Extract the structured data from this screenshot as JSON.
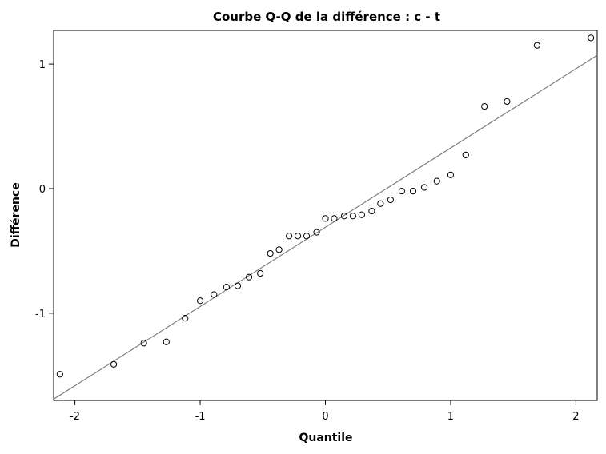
{
  "chart_data": {
    "type": "scatter",
    "title": "Courbe Q-Q de la différence : c - t",
    "xlabel": "Quantile",
    "ylabel": "Différence",
    "xlim": [
      -2.17,
      2.17
    ],
    "ylim": [
      -1.7,
      1.27
    ],
    "xticks": [
      -2,
      -1,
      0,
      1,
      2
    ],
    "xtick_labels": [
      "-2",
      "-1",
      "0",
      "1",
      "2"
    ],
    "yticks": [
      -1,
      0,
      1
    ],
    "ytick_labels": [
      "-1",
      "0",
      "1"
    ],
    "grid": false,
    "legend": "none",
    "reference_line": {
      "x": [
        -2.17,
        2.17
      ],
      "y": [
        -1.69,
        1.07
      ],
      "color": "#808080"
    },
    "marker_color": "#000000",
    "points": [
      {
        "x": -2.12,
        "y": -1.49
      },
      {
        "x": -1.69,
        "y": -1.41
      },
      {
        "x": -1.45,
        "y": -1.24
      },
      {
        "x": -1.27,
        "y": -1.23
      },
      {
        "x": -1.12,
        "y": -1.04
      },
      {
        "x": -1.0,
        "y": -0.9
      },
      {
        "x": -0.89,
        "y": -0.85
      },
      {
        "x": -0.79,
        "y": -0.79
      },
      {
        "x": -0.7,
        "y": -0.78
      },
      {
        "x": -0.61,
        "y": -0.71
      },
      {
        "x": -0.52,
        "y": -0.68
      },
      {
        "x": -0.44,
        "y": -0.52
      },
      {
        "x": -0.37,
        "y": -0.49
      },
      {
        "x": -0.29,
        "y": -0.38
      },
      {
        "x": -0.22,
        "y": -0.38
      },
      {
        "x": -0.15,
        "y": -0.38
      },
      {
        "x": -0.07,
        "y": -0.35
      },
      {
        "x": 0.0,
        "y": -0.24
      },
      {
        "x": 0.07,
        "y": -0.24
      },
      {
        "x": 0.15,
        "y": -0.22
      },
      {
        "x": 0.22,
        "y": -0.22
      },
      {
        "x": 0.29,
        "y": -0.21
      },
      {
        "x": 0.37,
        "y": -0.18
      },
      {
        "x": 0.44,
        "y": -0.12
      },
      {
        "x": 0.52,
        "y": -0.09
      },
      {
        "x": 0.61,
        "y": -0.02
      },
      {
        "x": 0.7,
        "y": -0.02
      },
      {
        "x": 0.79,
        "y": 0.01
      },
      {
        "x": 0.89,
        "y": 0.06
      },
      {
        "x": 1.0,
        "y": 0.11
      },
      {
        "x": 1.12,
        "y": 0.27
      },
      {
        "x": 1.27,
        "y": 0.66
      },
      {
        "x": 1.45,
        "y": 0.7
      },
      {
        "x": 1.69,
        "y": 1.15
      },
      {
        "x": 2.12,
        "y": 1.21
      }
    ]
  }
}
